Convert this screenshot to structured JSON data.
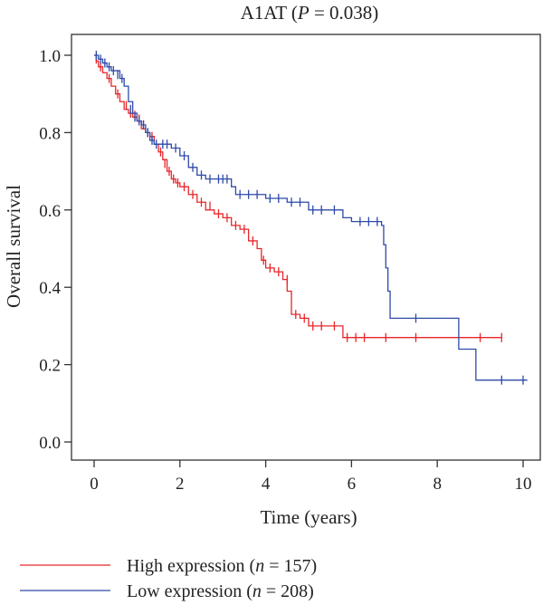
{
  "chart_data": {
    "type": "line",
    "title": "A1AT (P = 0.038)",
    "title_parts": {
      "prefix": "A1AT (",
      "p_symbol": "P",
      "suffix": " = 0.038)"
    },
    "xlabel": "Time (years)",
    "ylabel": "Overall survival",
    "xlim": [
      0,
      10
    ],
    "ylim": [
      0,
      1
    ],
    "x_ticks": [
      0,
      2,
      4,
      6,
      8,
      10
    ],
    "x_tick_labels": [
      "0",
      "2",
      "4",
      "6",
      "8",
      "10"
    ],
    "y_ticks": [
      0,
      0.2,
      0.4,
      0.6,
      0.8,
      1.0
    ],
    "y_tick_labels": [
      "0.0",
      "0.2",
      "0.4",
      "0.6",
      "0.8",
      "1.0"
    ],
    "grid": false,
    "legend_position": "bottom-left",
    "series": [
      {
        "name": "High expression (n = 157)",
        "legend_prefix": "High expression (",
        "legend_n": "n",
        "legend_suffix": " = 157)",
        "color": "#e8262a",
        "steps": [
          [
            0,
            1.0
          ],
          [
            0.05,
            0.985
          ],
          [
            0.1,
            0.97
          ],
          [
            0.2,
            0.955
          ],
          [
            0.3,
            0.94
          ],
          [
            0.4,
            0.92
          ],
          [
            0.5,
            0.9
          ],
          [
            0.6,
            0.88
          ],
          [
            0.7,
            0.86
          ],
          [
            0.8,
            0.85
          ],
          [
            0.9,
            0.84
          ],
          [
            1.0,
            0.83
          ],
          [
            1.1,
            0.81
          ],
          [
            1.2,
            0.8
          ],
          [
            1.3,
            0.79
          ],
          [
            1.4,
            0.77
          ],
          [
            1.5,
            0.75
          ],
          [
            1.6,
            0.73
          ],
          [
            1.7,
            0.7
          ],
          [
            1.8,
            0.68
          ],
          [
            1.9,
            0.67
          ],
          [
            2.0,
            0.66
          ],
          [
            2.2,
            0.64
          ],
          [
            2.4,
            0.62
          ],
          [
            2.6,
            0.6
          ],
          [
            2.8,
            0.59
          ],
          [
            3.0,
            0.58
          ],
          [
            3.2,
            0.56
          ],
          [
            3.4,
            0.55
          ],
          [
            3.6,
            0.52
          ],
          [
            3.8,
            0.5
          ],
          [
            3.9,
            0.47
          ],
          [
            4.0,
            0.45
          ],
          [
            4.2,
            0.44
          ],
          [
            4.4,
            0.42
          ],
          [
            4.5,
            0.39
          ],
          [
            4.6,
            0.33
          ],
          [
            4.8,
            0.32
          ],
          [
            5.0,
            0.3
          ],
          [
            5.8,
            0.27
          ],
          [
            9.5,
            0.27
          ]
        ],
        "censors": [
          [
            0.05,
            0.99
          ],
          [
            0.15,
            0.97
          ],
          [
            0.35,
            0.94
          ],
          [
            0.55,
            0.9
          ],
          [
            0.75,
            0.87
          ],
          [
            0.85,
            0.85
          ],
          [
            0.95,
            0.845
          ],
          [
            1.05,
            0.835
          ],
          [
            1.15,
            0.82
          ],
          [
            1.25,
            0.8
          ],
          [
            1.35,
            0.79
          ],
          [
            1.55,
            0.75
          ],
          [
            1.65,
            0.72
          ],
          [
            1.75,
            0.7
          ],
          [
            1.85,
            0.68
          ],
          [
            1.95,
            0.67
          ],
          [
            2.1,
            0.66
          ],
          [
            2.3,
            0.64
          ],
          [
            2.5,
            0.62
          ],
          [
            2.7,
            0.61
          ],
          [
            2.9,
            0.59
          ],
          [
            3.1,
            0.58
          ],
          [
            3.3,
            0.56
          ],
          [
            3.5,
            0.55
          ],
          [
            3.7,
            0.52
          ],
          [
            3.95,
            0.47
          ],
          [
            4.1,
            0.45
          ],
          [
            4.3,
            0.44
          ],
          [
            4.5,
            0.42
          ],
          [
            4.7,
            0.33
          ],
          [
            4.9,
            0.32
          ],
          [
            5.1,
            0.3
          ],
          [
            5.3,
            0.3
          ],
          [
            5.6,
            0.3
          ],
          [
            5.9,
            0.27
          ],
          [
            6.1,
            0.27
          ],
          [
            6.3,
            0.27
          ],
          [
            6.8,
            0.27
          ],
          [
            7.5,
            0.27
          ],
          [
            9.0,
            0.27
          ],
          [
            9.5,
            0.27
          ]
        ]
      },
      {
        "name": "Low expression (n = 208)",
        "legend_prefix": "Low expression (",
        "legend_n": "n",
        "legend_suffix": " = 208)",
        "color": "#2e4aa8",
        "steps": [
          [
            0,
            1.0
          ],
          [
            0.1,
            0.99
          ],
          [
            0.2,
            0.98
          ],
          [
            0.3,
            0.97
          ],
          [
            0.4,
            0.96
          ],
          [
            0.6,
            0.94
          ],
          [
            0.7,
            0.92
          ],
          [
            0.8,
            0.88
          ],
          [
            0.9,
            0.85
          ],
          [
            1.0,
            0.83
          ],
          [
            1.1,
            0.82
          ],
          [
            1.2,
            0.8
          ],
          [
            1.3,
            0.78
          ],
          [
            1.4,
            0.77
          ],
          [
            1.5,
            0.77
          ],
          [
            1.8,
            0.76
          ],
          [
            2.0,
            0.74
          ],
          [
            2.2,
            0.71
          ],
          [
            2.4,
            0.69
          ],
          [
            2.6,
            0.68
          ],
          [
            3.2,
            0.66
          ],
          [
            3.3,
            0.64
          ],
          [
            4.0,
            0.63
          ],
          [
            4.5,
            0.62
          ],
          [
            5.0,
            0.6
          ],
          [
            5.8,
            0.58
          ],
          [
            6.0,
            0.57
          ],
          [
            6.7,
            0.56
          ],
          [
            6.75,
            0.51
          ],
          [
            6.8,
            0.45
          ],
          [
            6.85,
            0.39
          ],
          [
            6.9,
            0.32
          ],
          [
            8.5,
            0.24
          ],
          [
            8.9,
            0.16
          ],
          [
            10.1,
            0.16
          ]
        ],
        "censors": [
          [
            0.05,
            1.0
          ],
          [
            0.15,
            0.99
          ],
          [
            0.25,
            0.98
          ],
          [
            0.35,
            0.97
          ],
          [
            0.45,
            0.96
          ],
          [
            0.55,
            0.95
          ],
          [
            0.65,
            0.94
          ],
          [
            0.85,
            0.86
          ],
          [
            0.95,
            0.84
          ],
          [
            1.05,
            0.83
          ],
          [
            1.15,
            0.82
          ],
          [
            1.25,
            0.8
          ],
          [
            1.35,
            0.78
          ],
          [
            1.45,
            0.77
          ],
          [
            1.6,
            0.77
          ],
          [
            1.7,
            0.77
          ],
          [
            1.9,
            0.76
          ],
          [
            2.1,
            0.74
          ],
          [
            2.3,
            0.71
          ],
          [
            2.5,
            0.69
          ],
          [
            2.7,
            0.68
          ],
          [
            2.9,
            0.68
          ],
          [
            3.0,
            0.68
          ],
          [
            3.1,
            0.68
          ],
          [
            3.4,
            0.64
          ],
          [
            3.6,
            0.64
          ],
          [
            3.8,
            0.64
          ],
          [
            4.1,
            0.63
          ],
          [
            4.3,
            0.63
          ],
          [
            4.6,
            0.62
          ],
          [
            4.8,
            0.62
          ],
          [
            5.1,
            0.6
          ],
          [
            5.3,
            0.6
          ],
          [
            5.6,
            0.6
          ],
          [
            6.2,
            0.57
          ],
          [
            6.4,
            0.57
          ],
          [
            6.6,
            0.57
          ],
          [
            7.5,
            0.32
          ],
          [
            9.5,
            0.16
          ],
          [
            10.0,
            0.16
          ]
        ]
      }
    ]
  }
}
